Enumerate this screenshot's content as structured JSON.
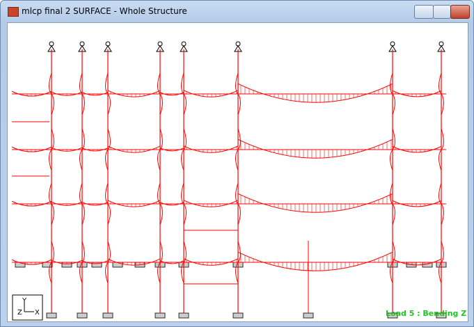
{
  "window": {
    "title": "mlcp final 2 SURFACE - Whole Structure"
  },
  "axes": {
    "y": "Y",
    "z": "Z",
    "x": "X"
  },
  "status": {
    "load_label": "Load 5 : Bending Z"
  }
}
